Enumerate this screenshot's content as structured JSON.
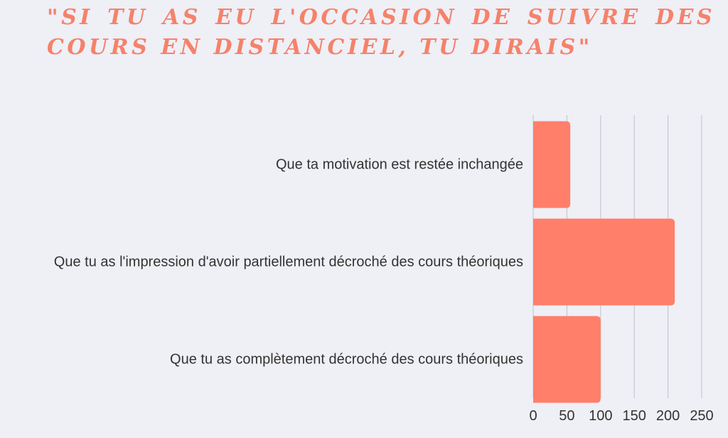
{
  "chart_data": {
    "type": "bar",
    "orientation": "horizontal",
    "title": "\"Si tu as eu l'occasion de suivre des cours en distanciel, tu dirais\"",
    "title_lines": [
      "\"Si tu as eu l'occasion de suivre des",
      "cours en distanciel, tu dirais\""
    ],
    "categories": [
      "Que ta motivation est restée inchangée",
      "Que tu as l'impression d'avoir partiellement décroché des cours théoriques",
      "Que tu as complètement décroché des cours théoriques"
    ],
    "values": [
      55,
      210,
      100
    ],
    "xlim": [
      0,
      250
    ],
    "xticks": [
      0,
      50,
      100,
      150,
      200,
      250
    ],
    "grid": true,
    "bar_color": "#ff7f6a",
    "title_color": "#f5826a",
    "grid_color": "#c8c8d0",
    "label_color": "#333333"
  }
}
